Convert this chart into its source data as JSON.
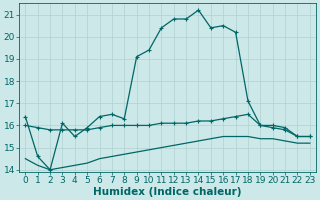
{
  "xlabel": "Humidex (Indice chaleur)",
  "background_color": "#cce8e8",
  "grid_color": "#b0d0d0",
  "line_color": "#006666",
  "x": [
    0,
    1,
    2,
    3,
    4,
    5,
    6,
    7,
    8,
    9,
    10,
    11,
    12,
    13,
    14,
    15,
    16,
    17,
    18,
    19,
    20,
    21,
    22,
    23
  ],
  "y_main": [
    16.4,
    14.6,
    14.0,
    16.1,
    15.5,
    15.9,
    16.4,
    16.5,
    16.3,
    19.1,
    19.4,
    20.4,
    20.8,
    20.8,
    21.2,
    20.4,
    20.5,
    20.2,
    17.1,
    16.0,
    15.9,
    15.8,
    15.5,
    15.5
  ],
  "y_flat": [
    16.0,
    15.9,
    15.8,
    15.8,
    15.8,
    15.8,
    15.9,
    16.0,
    16.0,
    16.0,
    16.0,
    16.1,
    16.1,
    16.1,
    16.2,
    16.2,
    16.3,
    16.4,
    16.5,
    16.0,
    16.0,
    15.9,
    15.5,
    15.5
  ],
  "y_lower": [
    14.5,
    14.2,
    14.0,
    14.1,
    14.2,
    14.3,
    14.5,
    14.6,
    14.7,
    14.8,
    14.9,
    15.0,
    15.1,
    15.2,
    15.3,
    15.4,
    15.5,
    15.5,
    15.5,
    15.4,
    15.4,
    15.3,
    15.2,
    15.2
  ],
  "ylim": [
    13.9,
    21.5
  ],
  "xlim": [
    -0.5,
    23.5
  ],
  "yticks": [
    14,
    15,
    16,
    17,
    18,
    19,
    20,
    21
  ],
  "xticks": [
    0,
    1,
    2,
    3,
    4,
    5,
    6,
    7,
    8,
    9,
    10,
    11,
    12,
    13,
    14,
    15,
    16,
    17,
    18,
    19,
    20,
    21,
    22,
    23
  ],
  "tick_fontsize": 6.5,
  "xlabel_fontsize": 7.5
}
